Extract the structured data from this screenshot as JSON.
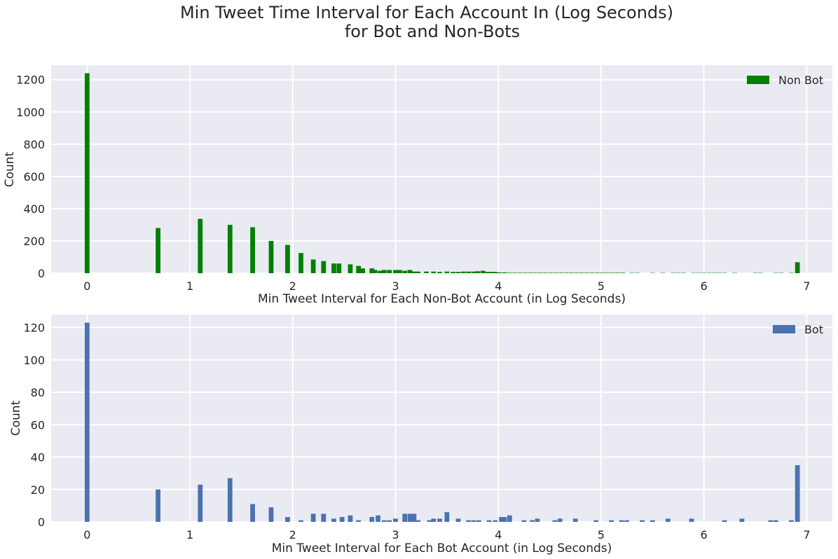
{
  "figure": {
    "title_line1": "Min Tweet Time Interval for Each Account In (Log Seconds)",
    "title_line2": "for Bot and Non-Bots",
    "background": "#eaeaf2",
    "grid_color": "#ffffff"
  },
  "chart_data": [
    {
      "type": "bar",
      "xlabel": "Min Tweet Interval for Each Non-Bot Account  (in Log Seconds)",
      "ylabel": "Count",
      "xlim": [
        -0.35,
        7.25
      ],
      "ylim": [
        0,
        1290
      ],
      "xticks": [
        0,
        1,
        2,
        3,
        4,
        5,
        6,
        7
      ],
      "yticks": [
        0,
        200,
        400,
        600,
        800,
        1000,
        1200
      ],
      "grid": true,
      "legend": "top-right",
      "bar_width": 0.046,
      "series": [
        {
          "name": "Non Bot",
          "color": "#008000",
          "x": [
            0.0,
            0.69,
            1.1,
            1.39,
            1.61,
            1.79,
            1.95,
            2.08,
            2.2,
            2.3,
            2.4,
            2.45,
            2.56,
            2.64,
            2.68,
            2.77,
            2.8,
            2.85,
            2.89,
            2.94,
            3.0,
            3.04,
            3.09,
            3.14,
            3.18,
            3.22,
            3.3,
            3.37,
            3.43,
            3.5,
            3.56,
            3.61,
            3.66,
            3.71,
            3.76,
            3.8,
            3.85,
            3.89,
            3.93,
            3.97,
            4.01,
            4.06,
            4.11,
            4.16,
            4.21,
            4.26,
            4.31,
            4.36,
            4.41,
            4.46,
            4.51,
            4.56,
            4.61,
            4.66,
            4.71,
            4.76,
            4.81,
            4.86,
            4.91,
            4.96,
            5.01,
            5.06,
            5.11,
            5.16,
            5.21,
            5.3,
            5.35,
            5.5,
            5.6,
            5.7,
            5.75,
            5.8,
            5.9,
            5.95,
            6.0,
            6.05,
            6.1,
            6.15,
            6.2,
            6.3,
            6.5,
            6.55,
            6.7,
            6.75,
            6.85,
            6.91
          ],
          "values": [
            1240,
            280,
            337,
            300,
            285,
            200,
            175,
            125,
            85,
            75,
            60,
            60,
            55,
            45,
            30,
            30,
            20,
            15,
            20,
            20,
            20,
            20,
            15,
            20,
            10,
            10,
            10,
            10,
            8,
            10,
            8,
            8,
            10,
            10,
            10,
            12,
            15,
            8,
            8,
            8,
            5,
            5,
            3,
            3,
            3,
            3,
            3,
            3,
            3,
            3,
            3,
            3,
            3,
            3,
            3,
            3,
            3,
            3,
            3,
            3,
            3,
            3,
            3,
            3,
            3,
            2,
            2,
            2,
            2,
            2,
            2,
            2,
            2,
            2,
            2,
            2,
            2,
            2,
            2,
            2,
            2,
            2,
            2,
            2,
            2,
            68
          ]
        }
      ]
    },
    {
      "type": "bar",
      "xlabel": "Min Tweet Interval for Each Bot Account  (in Log Seconds)",
      "ylabel": "Count",
      "xlim": [
        -0.35,
        7.25
      ],
      "ylim": [
        0,
        128
      ],
      "xticks": [
        0,
        1,
        2,
        3,
        4,
        5,
        6,
        7
      ],
      "yticks": [
        0,
        20,
        40,
        60,
        80,
        100,
        120
      ],
      "grid": true,
      "legend": "top-right",
      "bar_width": 0.046,
      "series": [
        {
          "name": "Bot",
          "color": "#4c72b0",
          "x": [
            0.0,
            0.69,
            1.1,
            1.39,
            1.61,
            1.79,
            1.95,
            2.08,
            2.2,
            2.3,
            2.4,
            2.48,
            2.56,
            2.64,
            2.77,
            2.83,
            2.89,
            2.94,
            3.0,
            3.09,
            3.14,
            3.18,
            3.22,
            3.33,
            3.37,
            3.43,
            3.5,
            3.61,
            3.71,
            3.76,
            3.81,
            3.91,
            3.97,
            4.03,
            4.06,
            4.11,
            4.25,
            4.33,
            4.38,
            4.55,
            4.6,
            4.75,
            4.95,
            5.1,
            5.2,
            5.25,
            5.4,
            5.5,
            5.65,
            5.88,
            6.2,
            6.37,
            6.65,
            6.7,
            6.85,
            6.91
          ],
          "values": [
            123,
            20,
            23,
            27,
            11,
            9,
            3,
            1,
            5,
            5,
            2,
            3,
            4,
            1,
            3,
            4,
            1,
            1,
            2,
            5,
            5,
            5,
            1,
            1,
            2,
            2,
            6,
            2,
            1,
            1,
            1,
            1,
            1,
            3,
            3,
            4,
            1,
            1,
            2,
            1,
            2,
            2,
            1,
            1,
            1,
            1,
            1,
            1,
            2,
            2,
            1,
            2,
            1,
            1,
            1,
            35
          ]
        }
      ]
    }
  ]
}
